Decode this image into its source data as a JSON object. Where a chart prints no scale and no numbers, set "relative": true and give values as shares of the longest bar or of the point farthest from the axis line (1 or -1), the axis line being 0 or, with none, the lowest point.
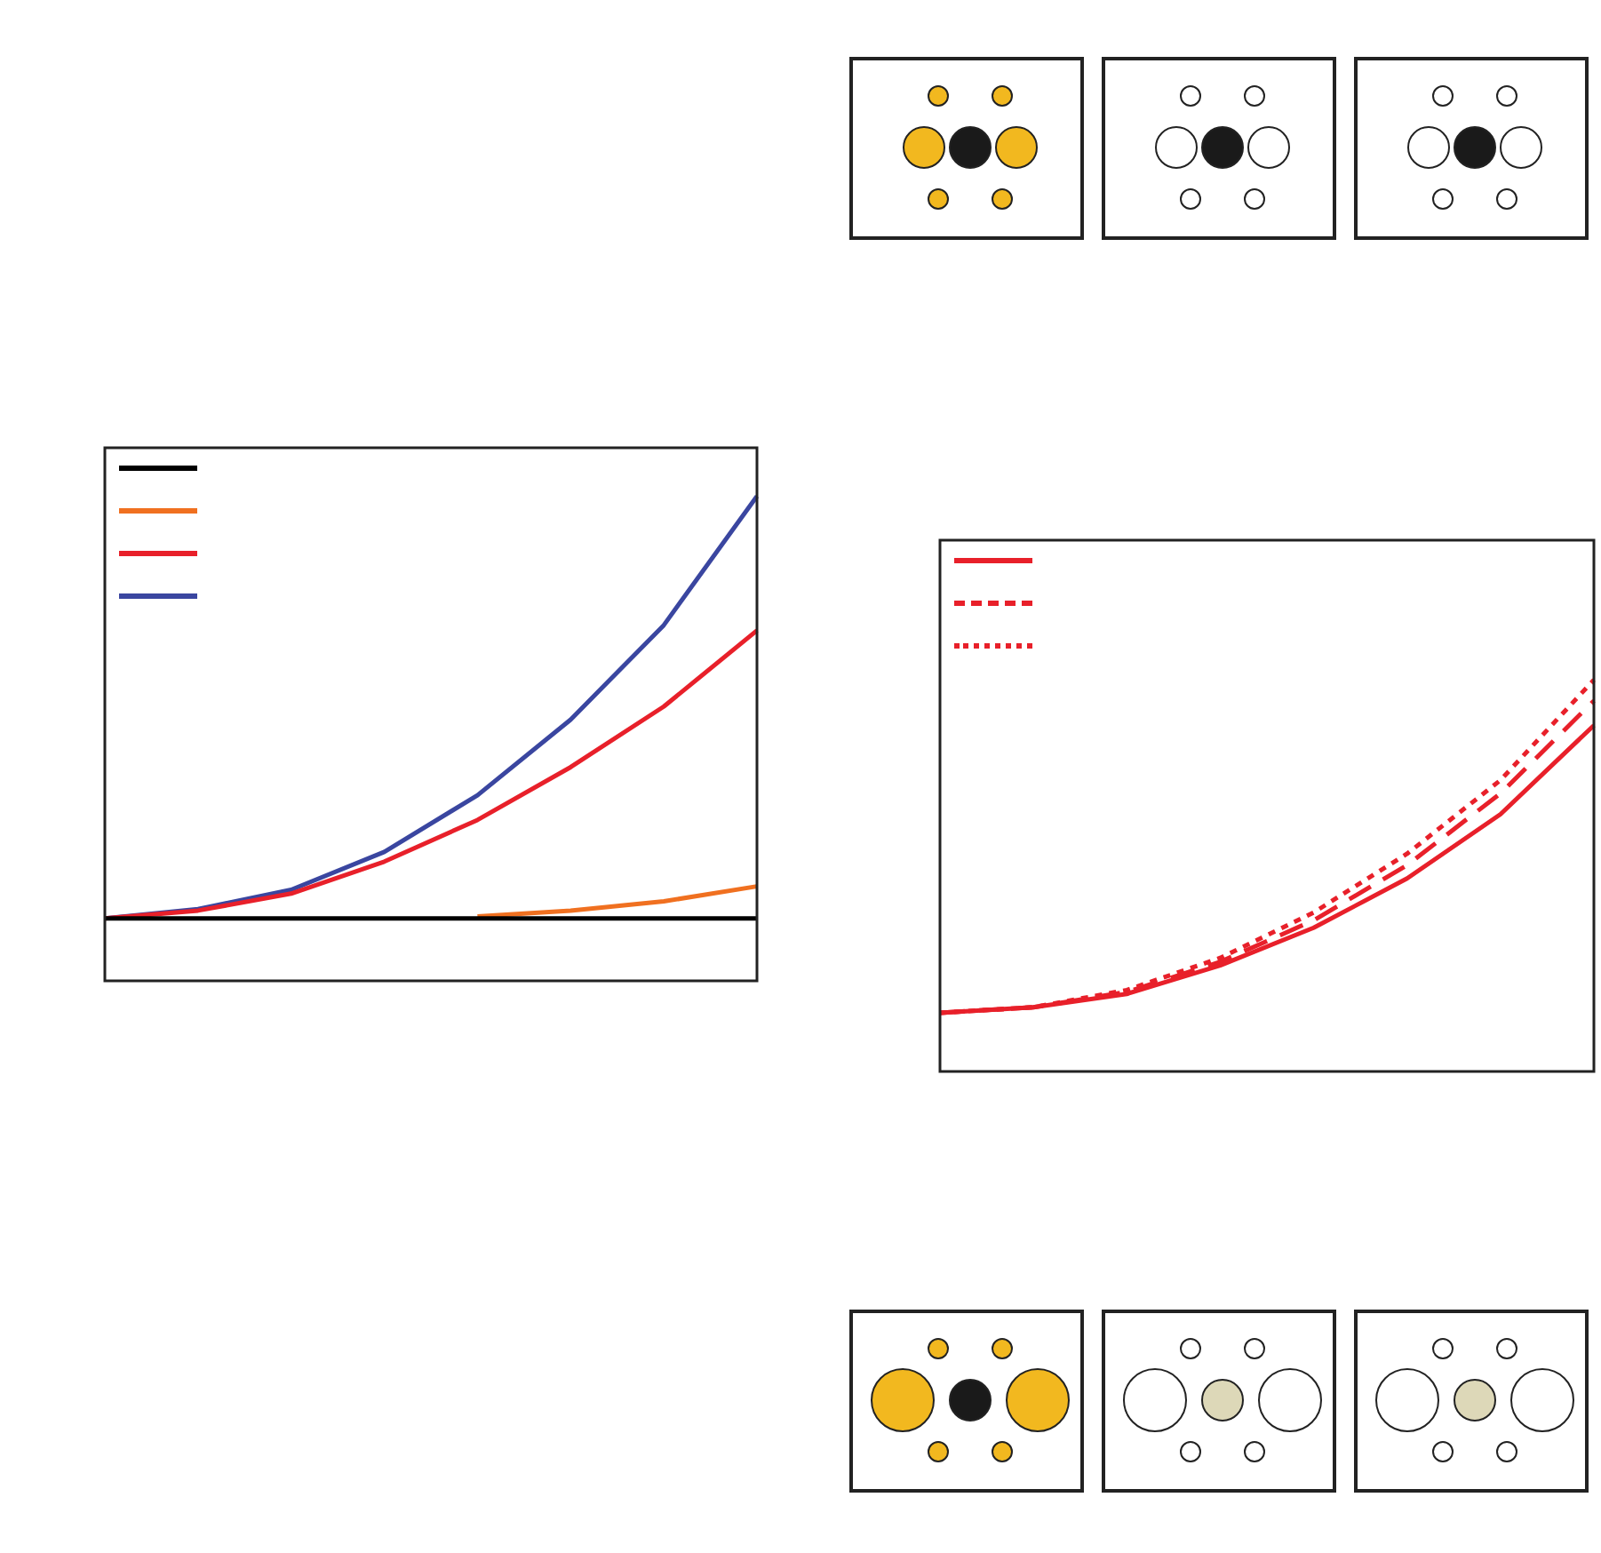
{
  "chart_data": [
    {
      "type": "line",
      "relative": true,
      "categories": [
        null,
        null,
        null,
        null,
        null,
        null,
        null,
        null
      ],
      "tick_labels": false,
      "grid": false,
      "marker": "none",
      "series": [
        {
          "color": "#000000",
          "line_style": "solid",
          "values": [
            0.129,
            0.129,
            0.129,
            0.129,
            0.129,
            0.129,
            0.129,
            0.129
          ]
        },
        {
          "color": "#f07020",
          "line_style": "solid",
          "values": [
            null,
            null,
            null,
            null,
            0.133,
            0.145,
            0.164,
            0.195
          ]
        },
        {
          "color": "#e8202a",
          "line_style": "solid",
          "values": [
            0.129,
            0.145,
            0.18,
            0.246,
            0.332,
            0.441,
            0.566,
            0.723
          ]
        },
        {
          "color": "#3a46a0",
          "line_style": "solid",
          "values": [
            0.129,
            0.148,
            0.188,
            0.266,
            0.383,
            0.539,
            0.734,
            1
          ]
        }
      ]
    },
    {
      "type": "line",
      "relative": true,
      "categories": [
        null,
        null,
        null,
        null,
        null,
        null,
        null,
        null
      ],
      "tick_labels": false,
      "grid": false,
      "marker": "none",
      "series": [
        {
          "color": "#e8202a",
          "line_style": "solid",
          "values": [
            0.15,
            0.164,
            0.198,
            0.271,
            0.367,
            0.493,
            0.657,
            0.884
          ]
        },
        {
          "color": "#e8202a",
          "line_style": "dashed",
          "values": [
            0.15,
            0.164,
            0.203,
            0.28,
            0.386,
            0.527,
            0.71,
            0.947
          ]
        },
        {
          "color": "#e8202a",
          "line_style": "dotted",
          "values": [
            0.15,
            0.164,
            0.208,
            0.29,
            0.406,
            0.556,
            0.744,
            1
          ]
        }
      ]
    }
  ]
}
